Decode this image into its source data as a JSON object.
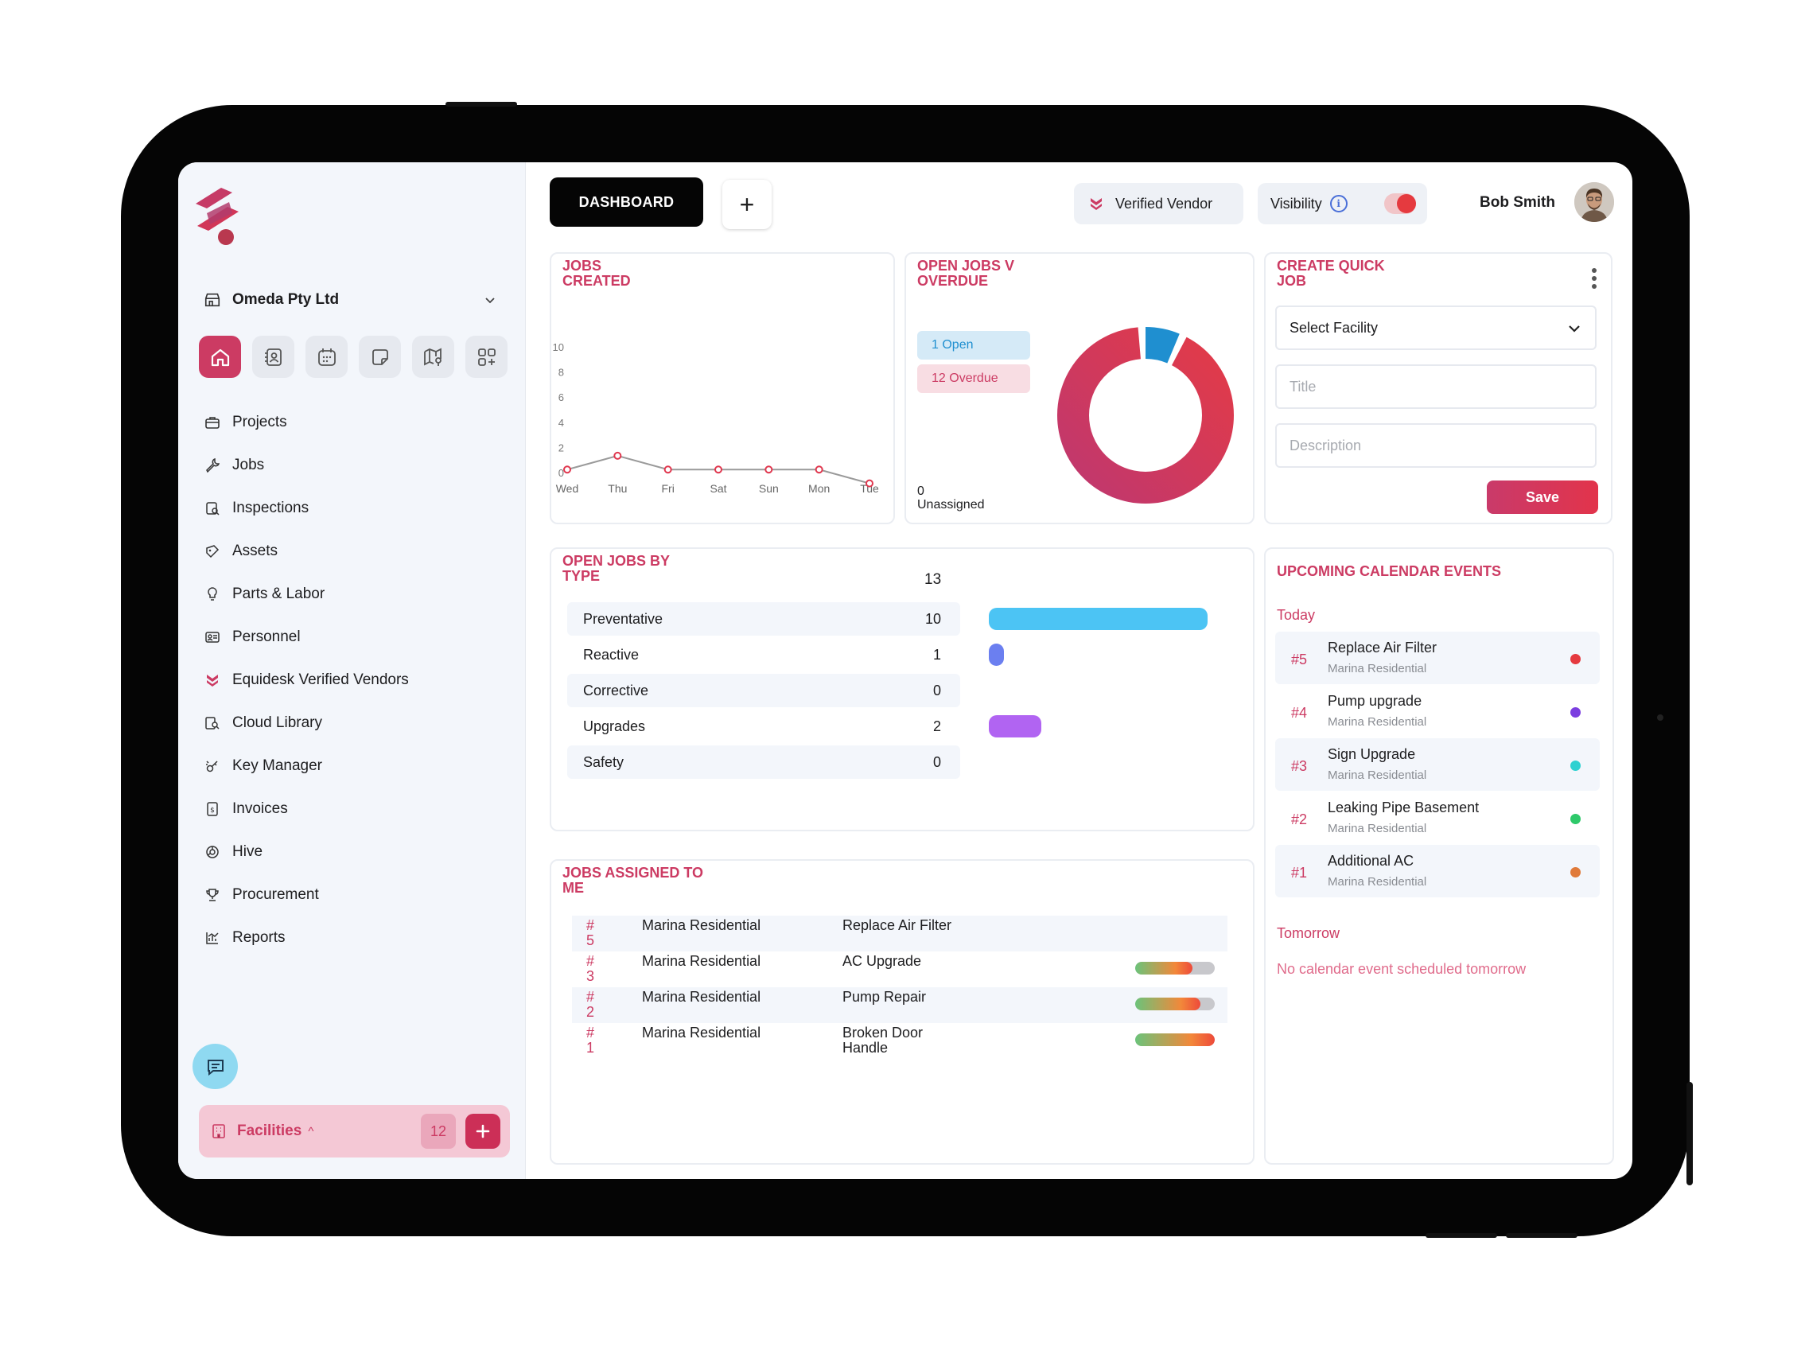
{
  "header": {
    "dashboard_tab": "DASHBOARD",
    "add_tab_symbol": "+",
    "verified_vendor": "Verified Vendor",
    "visibility_label": "Visibility",
    "visibility_info": "i",
    "visibility_on": true,
    "user_name": "Bob Smith"
  },
  "sidebar": {
    "org_name": "Omeda Pty Ltd",
    "quick_icons": [
      "home-icon",
      "contacts-icon",
      "calendar-icon",
      "note-icon",
      "map-icon",
      "apps-icon"
    ],
    "nav": [
      {
        "label": "Projects",
        "icon": "briefcase-icon"
      },
      {
        "label": "Jobs",
        "icon": "wrench-icon"
      },
      {
        "label": "Inspections",
        "icon": "inspection-icon"
      },
      {
        "label": "Assets",
        "icon": "asset-icon"
      },
      {
        "label": "Parts & Labor",
        "icon": "bulb-icon"
      },
      {
        "label": "Personnel",
        "icon": "id-card-icon"
      },
      {
        "label": "Equidesk Verified Vendors",
        "icon": "verified-chevron-icon"
      },
      {
        "label": "Cloud Library",
        "icon": "library-icon"
      },
      {
        "label": "Key Manager",
        "icon": "key-icon"
      },
      {
        "label": "Invoices",
        "icon": "invoice-icon"
      },
      {
        "label": "Hive",
        "icon": "hive-icon"
      },
      {
        "label": "Procurement",
        "icon": "trophy-icon"
      },
      {
        "label": "Reports",
        "icon": "reports-icon"
      }
    ],
    "facilities_label": "Facilities",
    "facilities_caret": "^",
    "facilities_count": "12"
  },
  "colors": {
    "brand": "#cc3b63",
    "open": "#1f8fd0",
    "overdue": "#cc3b63"
  },
  "jobs_created": {
    "title": "JOBS CREATED",
    "chart_data": {
      "type": "line",
      "categories": [
        "Wed",
        "Thu",
        "Fri",
        "Sat",
        "Sun",
        "Mon",
        "Tue"
      ],
      "values": [
        0.3,
        1.4,
        0.3,
        0.3,
        0.3,
        0.3,
        -0.8
      ],
      "yticks": [
        "0",
        "2",
        "4",
        "6",
        "8",
        "10"
      ],
      "ylim": [
        0,
        10
      ]
    }
  },
  "open_vs_overdue": {
    "title": "OPEN JOBS V OVERDUE",
    "open_label": "1 Open",
    "overdue_label": "12 Overdue",
    "unassigned_count": "0",
    "unassigned_label": "Unassigned",
    "chart_data": {
      "type": "pie",
      "slices": [
        {
          "name": "Open",
          "value": 1,
          "color": "#1f8fd0"
        },
        {
          "name": "Overdue",
          "value": 12,
          "color": "#d8395a"
        }
      ]
    }
  },
  "quick_job": {
    "title": "CREATE QUICK JOB",
    "facility_placeholder": "Select Facility",
    "title_placeholder": "Title",
    "description_placeholder": "Description",
    "save_label": "Save"
  },
  "jobs_by_type": {
    "title": "OPEN JOBS BY TYPE",
    "total": "13",
    "rows": [
      {
        "label": "Preventative",
        "value": "10",
        "color": "#4cc4f4"
      },
      {
        "label": "Reactive",
        "value": "1",
        "color": "#6b7ff0"
      },
      {
        "label": "Corrective",
        "value": "0",
        "color": "#a268f0"
      },
      {
        "label": "Upgrades",
        "value": "2",
        "color": "#b164f2"
      },
      {
        "label": "Safety",
        "value": "0",
        "color": "#b164f2"
      }
    ]
  },
  "jobs_assigned": {
    "title": "JOBS ASSIGNED TO ME",
    "rows": [
      {
        "num": "# 5",
        "location": "Marina Residential",
        "job": "Replace Air Filter",
        "progress": null
      },
      {
        "num": "# 3",
        "location": "Marina Residential",
        "job": "AC Upgrade",
        "progress": 0.72
      },
      {
        "num": "# 2",
        "location": "Marina Residential",
        "job": "Pump Repair",
        "progress": 0.82
      },
      {
        "num": "# 1",
        "location": "Marina Residential",
        "job": "Broken Door Handle",
        "progress": 1.0
      }
    ]
  },
  "calendar": {
    "title": "UPCOMING CALENDAR EVENTS",
    "today_label": "Today",
    "tomorrow_label": "Tomorrow",
    "no_events_tomorrow": "No calendar event scheduled tomorrow",
    "events": [
      {
        "num": "#5",
        "title": "Replace Air Filter",
        "location": "Marina Residential",
        "color": "#e53a3f"
      },
      {
        "num": "#4",
        "title": "Pump upgrade",
        "location": "Marina Residential",
        "color": "#7b3ee0"
      },
      {
        "num": "#3",
        "title": "Sign Upgrade",
        "location": "Marina Residential",
        "color": "#2ed1d1"
      },
      {
        "num": "#2",
        "title": "Leaking Pipe Basement",
        "location": "Marina Residential",
        "color": "#2ec96a"
      },
      {
        "num": "#1",
        "title": "Additional AC",
        "location": "Marina Residential",
        "color": "#e07a3a"
      }
    ]
  }
}
